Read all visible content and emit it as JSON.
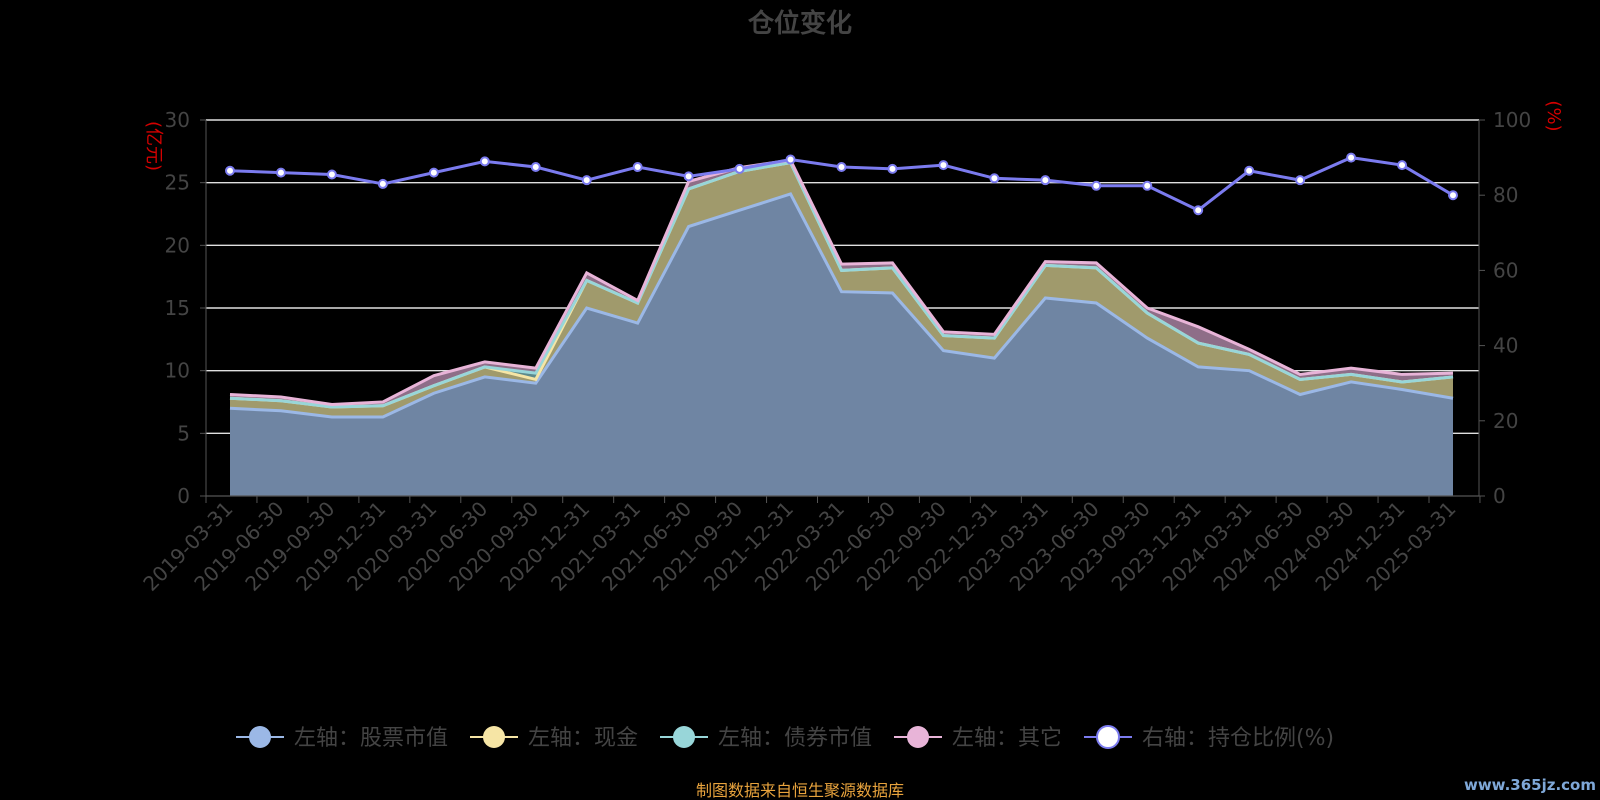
{
  "chart_data": {
    "type": "area",
    "title": "仓位变化",
    "left_axis_unit": "(亿元)",
    "right_axis_unit": "(%)",
    "ylim_left": [
      0,
      30
    ],
    "ylim_right": [
      0,
      100
    ],
    "yticks_left": [
      "0",
      "5",
      "10",
      "15",
      "20",
      "25",
      "30"
    ],
    "yticks_right": [
      "0",
      "20",
      "40",
      "60",
      "80",
      "100"
    ],
    "grid": true,
    "legend_position": "bottom",
    "stacked": true,
    "categories": [
      "2019-03-31",
      "2019-06-30",
      "2019-09-30",
      "2019-12-31",
      "2020-03-31",
      "2020-06-30",
      "2020-09-30",
      "2020-12-31",
      "2021-03-31",
      "2021-06-30",
      "2021-09-30",
      "2021-12-31",
      "2022-03-31",
      "2022-06-30",
      "2022-09-30",
      "2022-12-31",
      "2023-03-31",
      "2023-06-30",
      "2023-09-30",
      "2023-12-31",
      "2024-03-31",
      "2024-06-30",
      "2024-09-30",
      "2024-12-31",
      "2025-03-31"
    ],
    "series": [
      {
        "name": "左轴：股票市值",
        "axis": "left",
        "color": "#9bb8e6",
        "fill": "#6f85a3",
        "values": [
          7.0,
          6.8,
          6.3,
          6.3,
          8.2,
          9.5,
          9.0,
          15.0,
          13.8,
          21.5,
          22.8,
          24.1,
          16.3,
          16.2,
          11.6,
          11.0,
          15.8,
          15.4,
          12.6,
          10.3,
          10.0,
          8.1,
          9.1,
          8.5,
          7.8
        ]
      },
      {
        "name": "左轴：现金",
        "axis": "left",
        "color": "#f6e5a5",
        "fill": "#a09a6c",
        "values": [
          0.8,
          0.8,
          0.8,
          0.9,
          0.6,
          0.8,
          0.3,
          2.2,
          1.6,
          3.0,
          3.1,
          2.5,
          1.7,
          2.0,
          1.2,
          1.6,
          2.6,
          2.8,
          2.0,
          1.9,
          1.3,
          1.2,
          0.6,
          0.6,
          1.7
        ]
      },
      {
        "name": "左轴：债券市值",
        "axis": "left",
        "color": "#98d6d9",
        "fill": "#5d8a8c",
        "values": [
          0.0,
          0.0,
          0.0,
          0.0,
          0.0,
          0.0,
          0.5,
          0.0,
          0.0,
          0.0,
          0.0,
          0.0,
          0.0,
          0.0,
          0.0,
          0.0,
          0.0,
          0.0,
          0.0,
          0.0,
          0.0,
          0.0,
          0.0,
          0.0,
          0.0
        ]
      },
      {
        "name": "左轴：其它",
        "axis": "left",
        "color": "#e8b4d8",
        "fill": "#8e6e88",
        "values": [
          0.3,
          0.3,
          0.2,
          0.3,
          0.8,
          0.4,
          0.4,
          0.6,
          0.2,
          0.6,
          0.3,
          0.2,
          0.5,
          0.4,
          0.3,
          0.3,
          0.3,
          0.4,
          0.4,
          1.3,
          0.4,
          0.4,
          0.5,
          0.6,
          0.3
        ]
      },
      {
        "name": "右轴：持仓比例(%)",
        "axis": "right",
        "color": "#7b7bef",
        "values": [
          86.5,
          86.0,
          85.5,
          83.0,
          86.0,
          89.0,
          87.5,
          84.0,
          87.5,
          85.0,
          87.0,
          89.5,
          87.5,
          87.0,
          88.0,
          84.5,
          84.0,
          82.5,
          82.5,
          76.0,
          86.5,
          84.0,
          90.0,
          88.0,
          80.0
        ]
      }
    ]
  },
  "footer": "制图数据来自恒生聚源数据库",
  "watermark": "www.365jz.com"
}
